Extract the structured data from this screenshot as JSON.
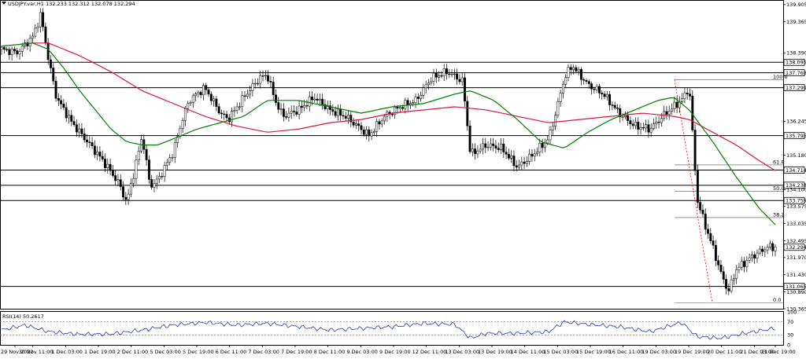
{
  "header": {
    "symbol_line": "USDJPY.var,H1  132.233 132.312 132.078 132.294"
  },
  "indicator": {
    "label": "RSI(14) 50.2617",
    "levels": [
      "100",
      "70",
      "30",
      "0"
    ]
  },
  "price_axis": {
    "ticks": [
      "139.905",
      "139.365",
      "138.390",
      "136.245",
      "135.180",
      "134.100",
      "133.575",
      "133.035",
      "132.495",
      "131.970",
      "131.430",
      "130.890",
      "130.365"
    ]
  },
  "level_boxes": [
    {
      "text": "138.095",
      "value": 138.095
    },
    {
      "text": "137.768",
      "value": 137.768
    },
    {
      "text": "137.299",
      "value": 137.299
    },
    {
      "text": "135.795",
      "value": 135.795
    },
    {
      "text": "134.714",
      "value": 134.714
    },
    {
      "text": "134.238",
      "value": 134.238
    },
    {
      "text": "133.759",
      "value": 133.759
    },
    {
      "text": "132.294",
      "value": 132.294
    },
    {
      "text": "131.065",
      "value": 131.065
    }
  ],
  "fib_labels": [
    "100.0",
    "61.8",
    "50.0",
    "38.2",
    "0.0"
  ],
  "time_axis": {
    "labels": [
      "29 Nov 2022",
      "30 Nov 11:00",
      "1 Dec 03:00",
      "1 Dec 19:00",
      "2 Dec 11:00",
      "5 Dec 03:00",
      "5 Dec 19:00",
      "6 Dec 11:00",
      "7 Dec 03:00",
      "7 Dec 19:00",
      "8 Dec 11:00",
      "9 Dec 03:00",
      "9 Dec 19:00",
      "12 Dec 11:00",
      "13 Dec 03:00",
      "13 Dec 19:00",
      "14 Dec 11:00",
      "15 Dec 03:00",
      "15 Dec 19:00",
      "16 Dec 11:00",
      "19 Dec 03:00",
      "19 Dec 19:00",
      "20 Dec 11:00",
      "21 Dec 03:00",
      "21 Dec 19:00"
    ]
  },
  "chart_data": {
    "type": "candlestick",
    "symbol": "USDJPY.var",
    "timeframe": "H1",
    "ohlc_last": {
      "open": 132.233,
      "high": 132.312,
      "low": 132.078,
      "close": 132.294
    },
    "ylim": [
      130.365,
      140.0
    ],
    "price_path": [
      [
        0,
        138.5
      ],
      [
        2,
        138.4
      ],
      [
        4,
        138.9
      ],
      [
        5,
        139.6
      ],
      [
        6,
        138.2
      ],
      [
        7,
        137.0
      ],
      [
        9,
        136.2
      ],
      [
        11,
        135.6
      ],
      [
        13,
        135.0
      ],
      [
        15,
        134.3
      ],
      [
        16,
        133.7
      ],
      [
        17,
        134.7
      ],
      [
        18,
        135.8
      ],
      [
        19,
        134.2
      ],
      [
        20,
        134.4
      ],
      [
        22,
        135.3
      ],
      [
        23,
        136.2
      ],
      [
        24,
        136.9
      ],
      [
        26,
        137.3
      ],
      [
        28,
        136.5
      ],
      [
        29,
        136.3
      ],
      [
        31,
        137.0
      ],
      [
        33,
        137.6
      ],
      [
        34,
        137.7
      ],
      [
        35,
        136.9
      ],
      [
        36,
        136.4
      ],
      [
        38,
        136.6
      ],
      [
        40,
        137.0
      ],
      [
        42,
        136.6
      ],
      [
        44,
        136.4
      ],
      [
        46,
        136.0
      ],
      [
        47,
        135.8
      ],
      [
        49,
        136.4
      ],
      [
        51,
        136.7
      ],
      [
        53,
        136.9
      ],
      [
        55,
        137.6
      ],
      [
        57,
        137.8
      ],
      [
        59,
        137.5
      ],
      [
        60,
        135.2
      ],
      [
        62,
        135.5
      ],
      [
        64,
        135.4
      ],
      [
        66,
        134.8
      ],
      [
        68,
        135.2
      ],
      [
        70,
        135.7
      ],
      [
        71,
        136.6
      ],
      [
        72,
        137.6
      ],
      [
        73,
        138.0
      ],
      [
        75,
        137.4
      ],
      [
        77,
        137.1
      ],
      [
        79,
        136.5
      ],
      [
        81,
        136.1
      ],
      [
        83,
        136.0
      ],
      [
        85,
        136.5
      ],
      [
        87,
        136.9
      ],
      [
        88,
        137.3
      ],
      [
        89,
        133.8
      ],
      [
        90,
        133.0
      ],
      [
        91,
        132.3
      ],
      [
        92,
        131.5
      ],
      [
        93,
        130.9
      ],
      [
        94,
        131.6
      ],
      [
        96,
        132.0
      ],
      [
        98,
        132.3
      ],
      [
        99,
        132.294
      ]
    ],
    "ma_fast_path": [
      [
        0,
        138.6
      ],
      [
        4,
        138.7
      ],
      [
        6,
        138.5
      ],
      [
        8,
        137.9
      ],
      [
        10,
        137.2
      ],
      [
        14,
        136.0
      ],
      [
        16,
        135.6
      ],
      [
        18,
        135.5
      ],
      [
        20,
        135.5
      ],
      [
        22,
        135.7
      ],
      [
        25,
        136.0
      ],
      [
        28,
        136.2
      ],
      [
        31,
        136.4
      ],
      [
        34,
        136.9
      ],
      [
        38,
        136.9
      ],
      [
        42,
        136.7
      ],
      [
        46,
        136.5
      ],
      [
        50,
        136.7
      ],
      [
        54,
        136.8
      ],
      [
        58,
        137.1
      ],
      [
        60,
        137.2
      ],
      [
        63,
        136.9
      ],
      [
        66,
        136.3
      ],
      [
        69,
        135.6
      ],
      [
        72,
        135.4
      ],
      [
        75,
        135.9
      ],
      [
        78,
        136.3
      ],
      [
        81,
        136.6
      ],
      [
        84,
        136.9
      ],
      [
        86,
        137.0
      ],
      [
        88,
        136.6
      ],
      [
        91,
        135.6
      ],
      [
        94,
        134.5
      ],
      [
        97,
        133.5
      ],
      [
        99,
        133.0
      ]
    ],
    "ma_slow_path": [
      [
        0,
        138.6
      ],
      [
        4,
        138.7
      ],
      [
        6,
        138.7
      ],
      [
        10,
        138.3
      ],
      [
        14,
        137.8
      ],
      [
        18,
        137.2
      ],
      [
        22,
        136.8
      ],
      [
        26,
        136.4
      ],
      [
        30,
        136.1
      ],
      [
        34,
        135.9
      ],
      [
        38,
        136.0
      ],
      [
        42,
        136.2
      ],
      [
        46,
        136.3
      ],
      [
        50,
        136.5
      ],
      [
        54,
        136.6
      ],
      [
        58,
        136.7
      ],
      [
        62,
        136.6
      ],
      [
        66,
        136.4
      ],
      [
        70,
        136.2
      ],
      [
        74,
        136.3
      ],
      [
        78,
        136.4
      ],
      [
        82,
        136.5
      ],
      [
        86,
        136.4
      ],
      [
        88,
        136.3
      ],
      [
        91,
        135.9
      ],
      [
        94,
        135.5
      ],
      [
        97,
        135.0
      ],
      [
        99,
        134.7
      ]
    ],
    "rsi_path": [
      [
        0,
        45
      ],
      [
        3,
        60
      ],
      [
        6,
        40
      ],
      [
        10,
        32
      ],
      [
        14,
        33
      ],
      [
        18,
        45
      ],
      [
        22,
        60
      ],
      [
        26,
        68
      ],
      [
        30,
        60
      ],
      [
        34,
        65
      ],
      [
        38,
        55
      ],
      [
        42,
        45
      ],
      [
        46,
        50
      ],
      [
        50,
        55
      ],
      [
        54,
        65
      ],
      [
        58,
        62
      ],
      [
        60,
        20
      ],
      [
        62,
        35
      ],
      [
        66,
        35
      ],
      [
        70,
        40
      ],
      [
        72,
        70
      ],
      [
        75,
        62
      ],
      [
        79,
        55
      ],
      [
        83,
        40
      ],
      [
        87,
        68
      ],
      [
        89,
        25
      ],
      [
        92,
        20
      ],
      [
        95,
        35
      ],
      [
        99,
        50.26
      ]
    ]
  },
  "colors": {
    "price": "#000000",
    "ma_fast": "#008000",
    "ma_slow": "#dc143c",
    "rsi": "#1e3cc8",
    "fib_line": "#ff0000"
  }
}
